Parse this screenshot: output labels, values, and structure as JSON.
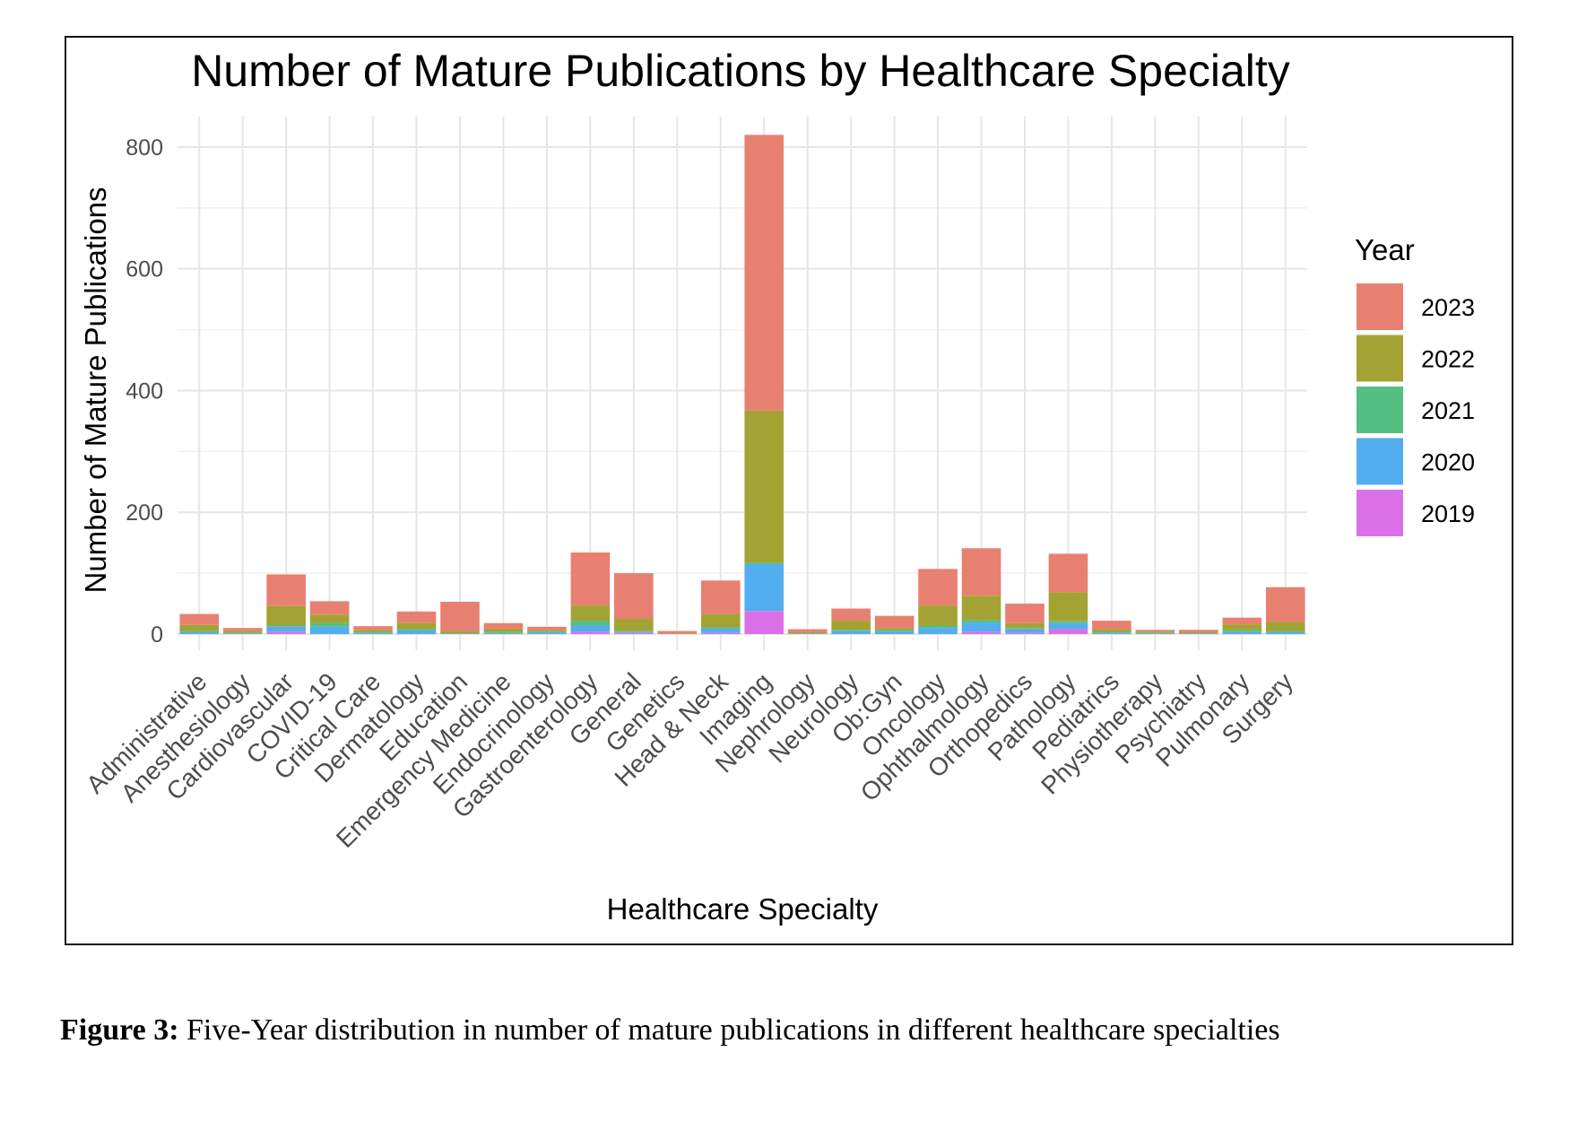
{
  "chart_data": {
    "type": "bar",
    "stacked": true,
    "title": "Number of Mature Publications by Healthcare Specialty",
    "xlabel": "Healthcare Specialty",
    "ylabel": "Number of Mature Publications",
    "ylim": [
      0,
      850
    ],
    "yticks": [
      0,
      200,
      400,
      600,
      800
    ],
    "grid": true,
    "legend": {
      "title": "Year",
      "placement": "right"
    },
    "categories": [
      "Administrative",
      "Anesthesiology",
      "Cardiovascular",
      "COVID-19",
      "Critical Care",
      "Dermatology",
      "Education",
      "Emergency Medicine",
      "Endocrinology",
      "Gastroenterology",
      "General",
      "Genetics",
      "Head & Neck",
      "Imaging",
      "Nephrology",
      "Neurology",
      "Ob:Gyn",
      "Oncology",
      "Ophthalmology",
      "Orthopedics",
      "Pathology",
      "Pediatrics",
      "Physiotherapy",
      "Psychiatry",
      "Pulmonary",
      "Surgery"
    ],
    "series": [
      {
        "name": "2019",
        "color": "#DA70E8",
        "values": [
          0,
          0,
          4,
          0,
          0,
          0,
          0,
          0,
          0,
          4,
          2,
          0,
          2,
          38,
          0,
          0,
          0,
          0,
          4,
          2,
          8,
          0,
          0,
          0,
          0,
          0
        ]
      },
      {
        "name": "2020",
        "color": "#52AEEF",
        "values": [
          3,
          1,
          8,
          12,
          2,
          6,
          1,
          2,
          3,
          10,
          2,
          0,
          7,
          77,
          1,
          5,
          5,
          10,
          15,
          6,
          10,
          2,
          1,
          1,
          4,
          3
        ]
      },
      {
        "name": "2021",
        "color": "#55BE83",
        "values": [
          2,
          1,
          2,
          6,
          1,
          2,
          0,
          1,
          1,
          8,
          1,
          0,
          2,
          2,
          0,
          2,
          1,
          4,
          4,
          2,
          3,
          1,
          1,
          0,
          2,
          2
        ]
      },
      {
        "name": "2022",
        "color": "#A3A334",
        "values": [
          10,
          3,
          32,
          14,
          4,
          10,
          4,
          6,
          3,
          25,
          20,
          1,
          22,
          250,
          2,
          15,
          4,
          33,
          40,
          8,
          48,
          5,
          2,
          2,
          10,
          15
        ]
      },
      {
        "name": "2023",
        "color": "#E88072",
        "values": [
          18,
          5,
          52,
          22,
          6,
          19,
          48,
          9,
          5,
          87,
          75,
          4,
          55,
          453,
          5,
          20,
          20,
          60,
          78,
          32,
          63,
          14,
          3,
          4,
          11,
          57
        ]
      }
    ]
  },
  "caption": {
    "label": "Figure 3:",
    "text": " Five-Year distribution in number of mature publications in different healthcare specialties"
  }
}
